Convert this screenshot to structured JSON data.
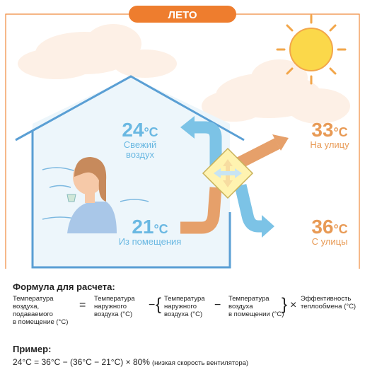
{
  "badge": "ЛЕТО",
  "labels": [
    {
      "value": "24",
      "unit": "°C",
      "caption": [
        "Свежий",
        "воздух"
      ]
    },
    {
      "value": "33",
      "unit": "°C",
      "caption": [
        "На улицу"
      ]
    },
    {
      "value": "21",
      "unit": "°C",
      "caption": [
        "Из помещения"
      ]
    },
    {
      "value": "36",
      "unit": "°C",
      "caption": [
        "С улицы"
      ]
    }
  ],
  "formula": {
    "title": "Формула для расчета:",
    "terms": [
      [
        "Температура",
        "воздуха,",
        "подаваемого",
        "в помещение (°C)"
      ],
      [
        "="
      ],
      [
        "Температура",
        "наружного",
        "воздуха (°C)"
      ],
      [
        "−"
      ],
      [
        "{"
      ],
      [
        "Температура",
        "наружного",
        "воздуха (°C)"
      ],
      [
        "−"
      ],
      [
        "Температура",
        "воздуха",
        "в помещении (°C)"
      ],
      [
        "}"
      ],
      [
        "×"
      ],
      [
        "Эффективность",
        "теплообмена (°C)"
      ]
    ]
  },
  "example": {
    "title": "Пример:",
    "equation": "24°C = 36°C − (36°C − 21°C) × 80%",
    "note": "(низкая скорость вентилятора)"
  }
}
